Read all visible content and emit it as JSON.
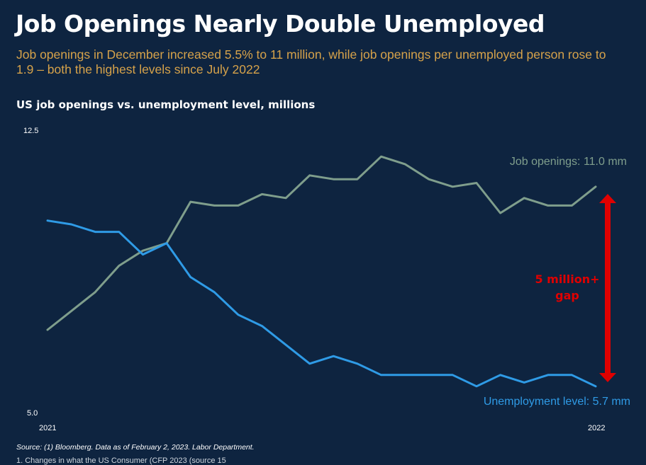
{
  "title": "Job Openings Nearly Double Unemployed",
  "subtitle": "Job openings in December increased 5.5% to 11 million, while job openings per unemployed person rose to 1.9 – both the highest levels since July 2022",
  "chart_title": "US job openings vs. unemployment level, millions",
  "source": "Source: (1) Bloomberg. Data as of February 2, 2023. Labor Department.",
  "footer": "1. Changes in what the US Consumer (CFP 2023 (source 15",
  "colors": {
    "background": "#0e2440",
    "job_openings": "#7f9e8c",
    "unemployment": "#2f9be6",
    "gap_arrow": "#e00000",
    "gap_text": "#e00000",
    "subtitle": "#d6a24a"
  },
  "chart_data": {
    "type": "line",
    "title": "US job openings vs. unemployment level, millions",
    "xlabel": "",
    "ylabel": "",
    "ylim": [
      5.0,
      12.5
    ],
    "y_ticks": [
      "12.5",
      "5.0"
    ],
    "x_tick_labels": [
      "2021",
      "2022"
    ],
    "grid": false,
    "legend": "inline end labels",
    "series": [
      {
        "name": "Job openings",
        "label": "Job openings: 11.0 mm",
        "color": "#7f9e8c",
        "values": [
          7.2,
          7.7,
          8.2,
          8.9,
          9.3,
          9.5,
          10.6,
          10.5,
          10.5,
          10.8,
          10.7,
          11.3,
          11.2,
          11.2,
          11.8,
          11.6,
          11.2,
          11.0,
          11.1,
          10.3,
          10.7,
          10.5,
          10.5,
          11.0
        ]
      },
      {
        "name": "Unemployment level",
        "label": "Unemployment level: 5.7 mm",
        "color": "#2f9be6",
        "values": [
          10.1,
          10.0,
          9.8,
          9.8,
          9.2,
          9.5,
          8.6,
          8.2,
          7.6,
          7.3,
          6.8,
          6.3,
          6.5,
          6.3,
          6.0,
          6.0,
          6.0,
          6.0,
          5.7,
          6.0,
          5.8,
          6.0,
          6.0,
          5.7
        ]
      }
    ],
    "annotation": {
      "text_line1": "5 million+",
      "text_line2": "gap"
    }
  }
}
